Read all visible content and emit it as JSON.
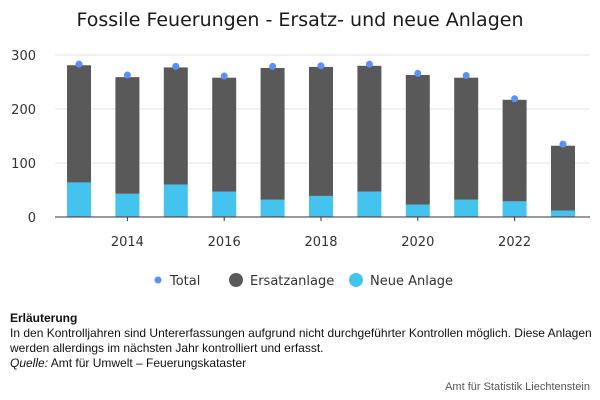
{
  "chart_data": {
    "type": "bar",
    "title": "Fossile Feuerungen - Ersatz- und neue Anlagen",
    "stacked": true,
    "x": [
      2013,
      2014,
      2015,
      2016,
      2017,
      2018,
      2019,
      2020,
      2021,
      2022,
      2023
    ],
    "x_tick_labels": [
      "2014",
      "2016",
      "2018",
      "2020",
      "2022"
    ],
    "x_tick_values": [
      2014,
      2016,
      2018,
      2020,
      2022
    ],
    "y_tick_labels": [
      "0",
      "100",
      "200",
      "300"
    ],
    "y_tick_values": [
      0,
      100,
      200,
      300
    ],
    "ylim": [
      0,
      320
    ],
    "grid": "horizontal",
    "legend_position": "bottom",
    "series": [
      {
        "name": "Total",
        "mark": "point",
        "color": "#5b8ff9",
        "values": [
          283,
          263,
          279,
          261,
          279,
          280,
          283,
          266,
          262,
          219,
          135
        ]
      },
      {
        "name": "Ersatzanlage",
        "mark": "bar",
        "color": "#595959",
        "values": [
          217,
          216,
          217,
          211,
          244,
          239,
          233,
          240,
          226,
          188,
          120
        ]
      },
      {
        "name": "Neue Anlage",
        "mark": "bar",
        "color": "#45c3ef",
        "values": [
          64,
          43,
          60,
          47,
          32,
          39,
          47,
          23,
          32,
          29,
          12
        ]
      }
    ],
    "legend": [
      "Total",
      "Ersatzanlage",
      "Neue Anlage"
    ]
  },
  "note": {
    "heading": "Erläuterung",
    "text": "In den Kontrolljahren sind Untererfassungen aufgrund nicht durchgeführter Kontrollen möglich. Diese Anlagen werden allerdings im nächsten Jahr kontrolliert und erfasst.",
    "source_label": "Quelle:",
    "source_text": " Amt für Umwelt – Feuerungskataster"
  },
  "footer": "Amt für Statistik Liechtenstein"
}
